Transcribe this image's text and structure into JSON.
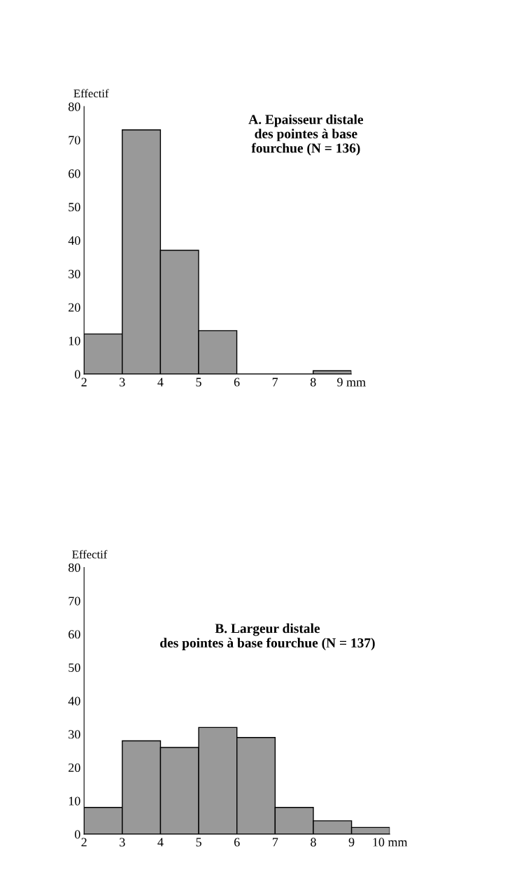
{
  "chart_data": [
    {
      "type": "histogram",
      "title": "A. Epaisseur distale\ndes pointes à base\nfourchue (N = 136)",
      "ylabel": "Effectif",
      "color": "#999999",
      "bins": [
        2,
        3,
        4,
        5,
        6,
        7,
        8,
        9
      ],
      "values": [
        12,
        73,
        37,
        13,
        0,
        0,
        1
      ],
      "xlim": [
        2,
        9
      ],
      "xticks": [
        2,
        3,
        4,
        5,
        6,
        7,
        8,
        {
          "value": 9,
          "label": "9 mm"
        }
      ],
      "ylim": [
        0,
        80
      ],
      "yticks": [
        0,
        10,
        20,
        30,
        40,
        50,
        60,
        70,
        80
      ],
      "grid": false,
      "legend": false
    },
    {
      "type": "histogram",
      "title": "B. Largeur distale\ndes pointes à base fourchue (N = 137)",
      "ylabel": "Effectif",
      "color": "#999999",
      "bins": [
        2,
        3,
        4,
        5,
        6,
        7,
        8,
        9,
        10
      ],
      "values": [
        8,
        28,
        26,
        32,
        29,
        8,
        4,
        2
      ],
      "xlim": [
        2,
        10
      ],
      "xticks": [
        2,
        3,
        4,
        5,
        6,
        7,
        8,
        9,
        {
          "value": 10,
          "label": "10 mm"
        }
      ],
      "ylim": [
        0,
        80
      ],
      "yticks": [
        0,
        10,
        20,
        30,
        40,
        50,
        60,
        70,
        80
      ],
      "grid": false,
      "legend": false
    }
  ]
}
